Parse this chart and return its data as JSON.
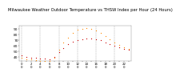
{
  "title": "Milwaukee Weather Outdoor Temperature vs THSW Index per Hour (24 Hours)",
  "title_fontsize": 3.8,
  "background_color": "#ffffff",
  "grid_color": "#999999",
  "hours": [
    0,
    1,
    2,
    3,
    4,
    5,
    6,
    7,
    8,
    9,
    10,
    11,
    12,
    13,
    14,
    15,
    16,
    17,
    18,
    19,
    20,
    21,
    22,
    23
  ],
  "temp": [
    42,
    40,
    39,
    38,
    37,
    37,
    36,
    40,
    48,
    56,
    62,
    67,
    70,
    71,
    72,
    72,
    71,
    69,
    66,
    63,
    60,
    57,
    54,
    52
  ],
  "thsw": [
    38,
    36,
    35,
    34,
    33,
    33,
    32,
    38,
    52,
    65,
    74,
    82,
    88,
    90,
    91,
    90,
    87,
    83,
    77,
    71,
    66,
    61,
    57,
    54
  ],
  "temp_color": "#cc0000",
  "thsw_color": "#ff8800",
  "ylim": [
    33,
    95
  ],
  "ytick_values": [
    40,
    50,
    60,
    70,
    80,
    90
  ],
  "ytick_fontsize": 3.2,
  "xtick_fontsize": 2.8,
  "marker_size": 0.9,
  "dpi": 100,
  "vgrid_positions": [
    0,
    4,
    8,
    12,
    16,
    20
  ]
}
